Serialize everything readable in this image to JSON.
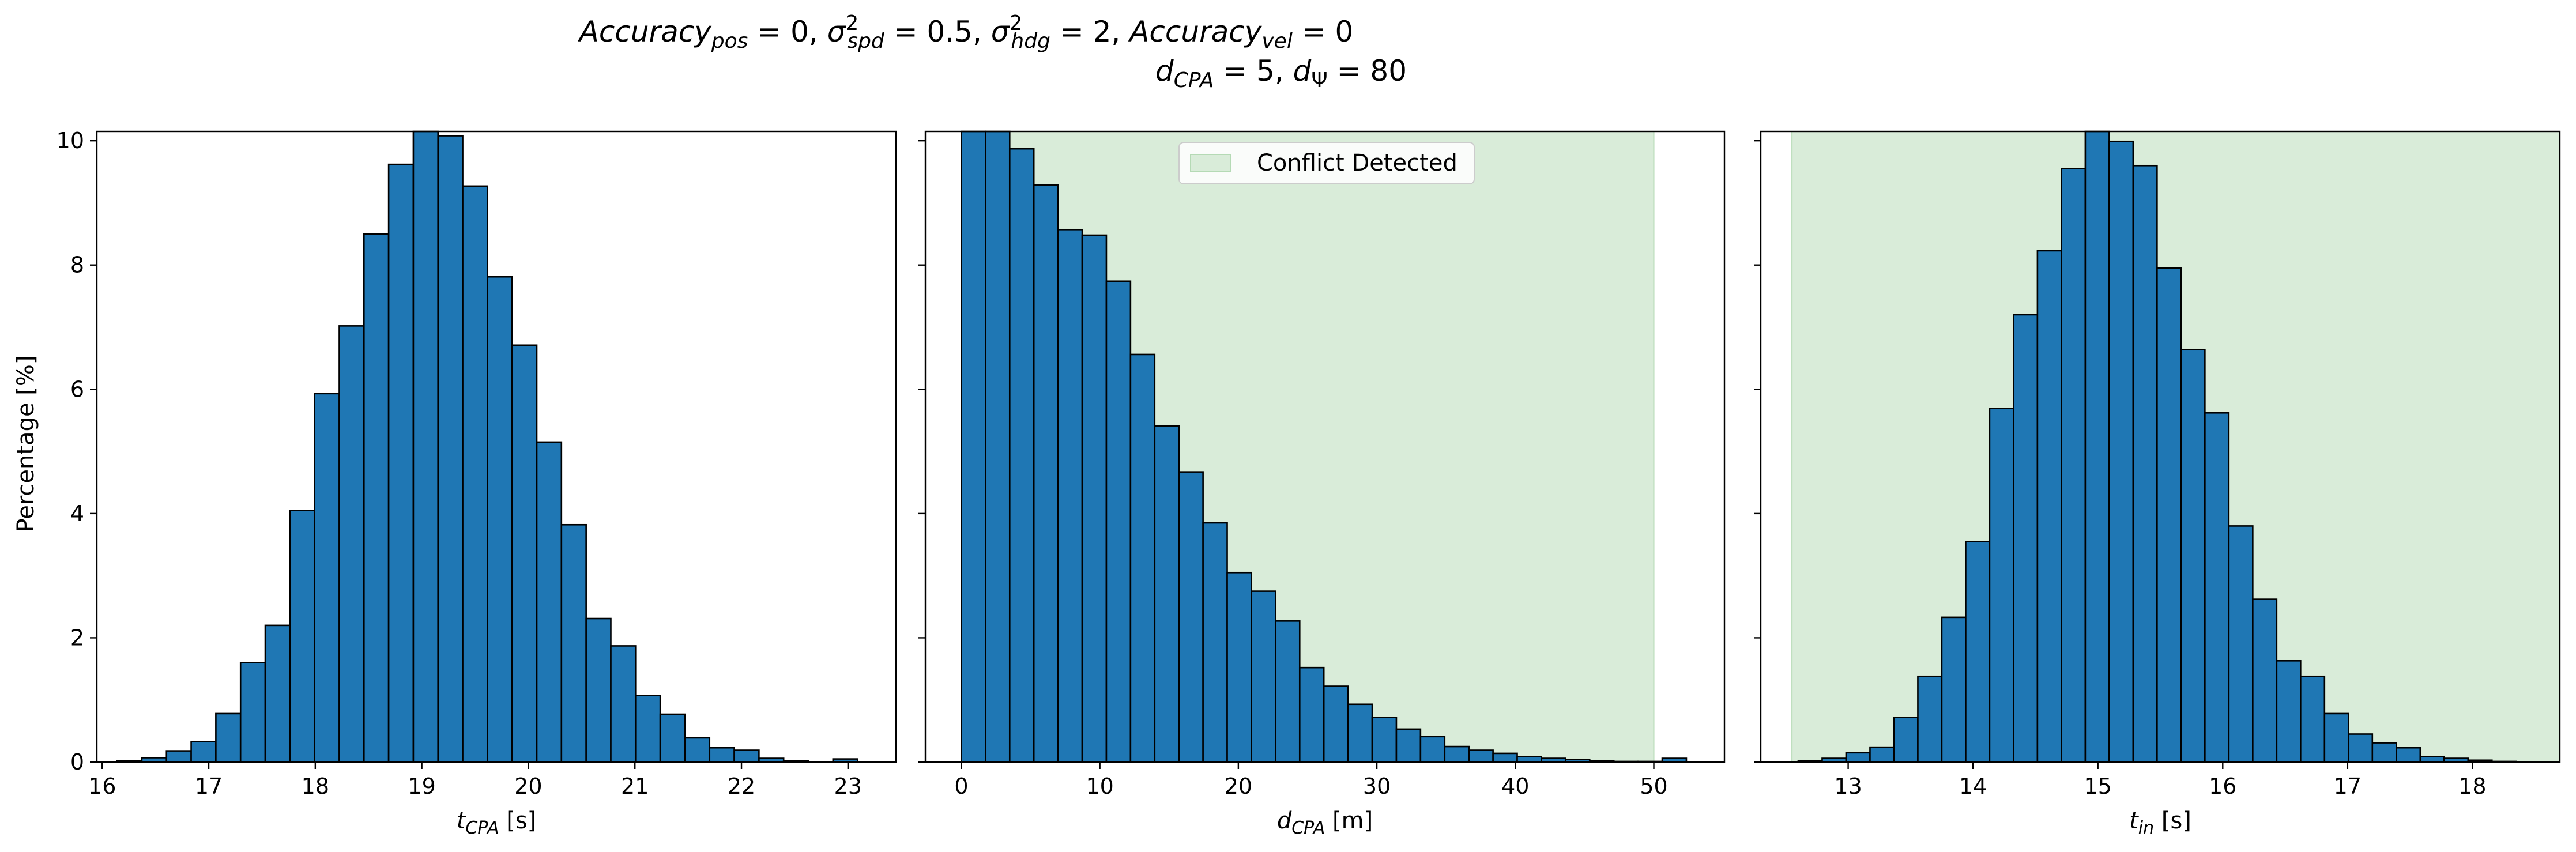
{
  "figure": {
    "title_line1": {
      "acc_pos_a": "Accuracy",
      "acc_pos_sub": "pos",
      "acc_pos_val": " = 0, ",
      "sigma_spd": "σ",
      "sigma_spd_sup": "2",
      "sigma_spd_sub": "spd",
      "sigma_spd_val": " = 0.5, ",
      "sigma_hdg": "σ",
      "sigma_hdg_sup": "2",
      "sigma_hdg_sub": "hdg",
      "sigma_hdg_val": " = 2, ",
      "acc_vel_a": "Accuracy",
      "acc_vel_sub": "vel",
      "acc_vel_val": " = 0"
    },
    "title_line2": {
      "d_cpa": "d",
      "d_cpa_sub": "CPA",
      "d_cpa_val": " = 5, ",
      "d_psi": "d",
      "d_psi_sub": "Ψ",
      "d_psi_val": " = 80"
    },
    "ylabel": "Percentage [%]",
    "colors": {
      "bar": "#1f77b4",
      "bar_edge": "#000000",
      "span": "#d9ecd9",
      "span_edge": "#b5dab5"
    }
  },
  "chart_data": [
    {
      "type": "bar",
      "xlabel": {
        "sym": "t",
        "sub": "CPA",
        "unit": " [s]"
      },
      "ylabel": "Percentage [%]",
      "xlim": [
        15.95,
        23.45
      ],
      "ylim": [
        0,
        10.15
      ],
      "xticks": [
        16,
        17,
        18,
        19,
        20,
        21,
        22,
        23
      ],
      "yticks": [
        0,
        2,
        4,
        6,
        8,
        10
      ],
      "bins": {
        "start": 16.14,
        "width": 0.2317
      },
      "values": [
        0.02,
        0.07,
        0.18,
        0.33,
        0.78,
        1.6,
        2.2,
        4.05,
        5.93,
        7.02,
        8.5,
        9.62,
        10.2,
        10.08,
        9.27,
        7.81,
        6.71,
        5.15,
        3.82,
        2.31,
        1.87,
        1.07,
        0.77,
        0.39,
        0.23,
        0.19,
        0.06,
        0.02,
        0.0,
        0.05
      ]
    },
    {
      "type": "bar",
      "xlabel": {
        "sym": "d",
        "sub": "CPA",
        "unit": " [m]"
      },
      "xlim": [
        -2.6,
        55.1
      ],
      "ylim": [
        0,
        10.15
      ],
      "xticks": [
        0,
        10,
        20,
        30,
        40,
        50
      ],
      "yticks": [
        0,
        2,
        4,
        6,
        8,
        10
      ],
      "span": {
        "x0": 0,
        "x1": 50
      },
      "legend": {
        "label": "Conflict Detected",
        "loc": "upper center"
      },
      "bins": {
        "start": 0,
        "width": 1.745
      },
      "values": [
        10.15,
        10.15,
        9.87,
        9.29,
        8.57,
        8.48,
        7.74,
        6.56,
        5.41,
        4.67,
        3.85,
        3.05,
        2.75,
        2.27,
        1.52,
        1.22,
        0.93,
        0.72,
        0.53,
        0.41,
        0.25,
        0.19,
        0.14,
        0.09,
        0.06,
        0.04,
        0.02,
        0.01,
        0.01,
        0.06
      ]
    },
    {
      "type": "bar",
      "xlabel": {
        "sym": "t",
        "sub": "in",
        "unit": " [s]"
      },
      "xlim": [
        12.3,
        18.7
      ],
      "ylim": [
        0,
        10.15
      ],
      "xticks": [
        13,
        14,
        15,
        16,
        17,
        18
      ],
      "yticks": [
        0,
        2,
        4,
        6,
        8,
        10
      ],
      "span": {
        "x0": 12.55,
        "x1": 18.7
      },
      "bins": {
        "start": 12.6,
        "width": 0.1916
      },
      "values": [
        0.02,
        0.06,
        0.15,
        0.24,
        0.72,
        1.38,
        2.33,
        3.55,
        5.69,
        7.2,
        8.23,
        9.55,
        10.25,
        9.99,
        9.6,
        7.95,
        6.64,
        5.62,
        3.8,
        2.62,
        1.63,
        1.38,
        0.78,
        0.45,
        0.31,
        0.23,
        0.09,
        0.06,
        0.03,
        0.01
      ]
    }
  ]
}
